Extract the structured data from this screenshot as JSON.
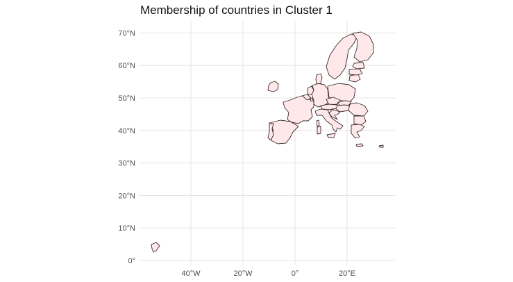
{
  "map": {
    "title": "Membership of countries in Cluster 1",
    "fill_color": "#ffe8ea",
    "border_color": "#3a2a2c",
    "grid_color": "#e6e6e6",
    "lat_ticks": [
      {
        "value": 0,
        "label": "0°"
      },
      {
        "value": 10,
        "label": "10°N"
      },
      {
        "value": 20,
        "label": "20°N"
      },
      {
        "value": 30,
        "label": "30°N"
      },
      {
        "value": 40,
        "label": "40°N"
      },
      {
        "value": 50,
        "label": "50°N"
      },
      {
        "value": 60,
        "label": "60°N"
      },
      {
        "value": 70,
        "label": "70°N"
      }
    ],
    "lon_ticks": [
      {
        "value": -40,
        "label": "40°W"
      },
      {
        "value": -20,
        "label": "20°W"
      },
      {
        "value": 0,
        "label": "0°"
      },
      {
        "value": 20,
        "label": "20°E"
      }
    ],
    "lon_range": [
      -57,
      35
    ],
    "lat_range": [
      1,
      71
    ],
    "grid": true,
    "legend": "none"
  }
}
